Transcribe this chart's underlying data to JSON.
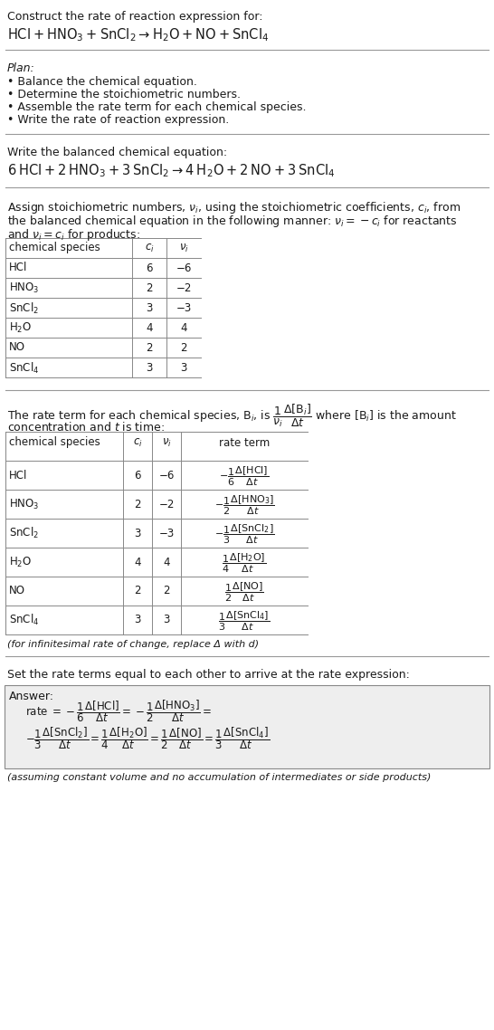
{
  "title_line1": "Construct the rate of reaction expression for:",
  "title_eq": "HCl + HNO$_3$ + SnCl$_2$ → H$_2$O + NO + SnCl$_4$",
  "plan_header": "Plan:",
  "plan_items": [
    "• Balance the chemical equation.",
    "• Determine the stoichiometric numbers.",
    "• Assemble the rate term for each chemical species.",
    "• Write the rate of reaction expression."
  ],
  "balanced_header": "Write the balanced chemical equation:",
  "balanced_eq": "6 HCl + 2 HNO$_3$ + 3 SnCl$_2$ → 4 H$_2$O + 2 NO + 3 SnCl$_4$",
  "stoich_line1": "Assign stoichiometric numbers, $\\nu_i$, using the stoichiometric coefficients, $c_i$, from",
  "stoich_line2": "the balanced chemical equation in the following manner: $\\nu_i = -c_i$ for reactants",
  "stoich_line3": "and $\\nu_i = c_i$ for products:",
  "table1_col0_header": "chemical species",
  "table1_col1_header": "$c_i$",
  "table1_col2_header": "$\\nu_i$",
  "table1_data": [
    [
      "HCl",
      "6",
      "−6"
    ],
    [
      "HNO$_3$",
      "2",
      "−2"
    ],
    [
      "SnCl$_2$",
      "3",
      "−3"
    ],
    [
      "H$_2$O",
      "4",
      "4"
    ],
    [
      "NO",
      "2",
      "2"
    ],
    [
      "SnCl$_4$",
      "3",
      "3"
    ]
  ],
  "rate_line1": "The rate term for each chemical species, B$_i$, is $\\dfrac{1}{\\nu_i}\\dfrac{\\Delta[\\mathrm{B}_i]}{\\Delta t}$ where [B$_i$] is the amount",
  "rate_line2": "concentration and $t$ is time:",
  "table2_col0_header": "chemical species",
  "table2_col1_header": "$c_i$",
  "table2_col2_header": "$\\nu_i$",
  "table2_col3_header": "rate term",
  "table2_data": [
    [
      "HCl",
      "6",
      "−6",
      "$-\\dfrac{1}{6}\\dfrac{\\Delta[\\mathrm{HCl}]}{\\Delta t}$"
    ],
    [
      "HNO$_3$",
      "2",
      "−2",
      "$-\\dfrac{1}{2}\\dfrac{\\Delta[\\mathrm{HNO_3}]}{\\Delta t}$"
    ],
    [
      "SnCl$_2$",
      "3",
      "−3",
      "$-\\dfrac{1}{3}\\dfrac{\\Delta[\\mathrm{SnCl_2}]}{\\Delta t}$"
    ],
    [
      "H$_2$O",
      "4",
      "4",
      "$\\dfrac{1}{4}\\dfrac{\\Delta[\\mathrm{H_2O}]}{\\Delta t}$"
    ],
    [
      "NO",
      "2",
      "2",
      "$\\dfrac{1}{2}\\dfrac{\\Delta[\\mathrm{NO}]}{\\Delta t}$"
    ],
    [
      "SnCl$_4$",
      "3",
      "3",
      "$\\dfrac{1}{3}\\dfrac{\\Delta[\\mathrm{SnCl_4}]}{\\Delta t}$"
    ]
  ],
  "infinitesimal_note": "(for infinitesimal rate of change, replace Δ with d)",
  "set_rate_header": "Set the rate terms equal to each other to arrive at the rate expression:",
  "answer_label": "Answer:",
  "ans_line1": "rate $= -\\dfrac{1}{6}\\dfrac{\\Delta[\\mathrm{HCl}]}{\\Delta t} = -\\dfrac{1}{2}\\dfrac{\\Delta[\\mathrm{HNO_3}]}{\\Delta t} =$",
  "ans_line2": "$-\\dfrac{1}{3}\\dfrac{\\Delta[\\mathrm{SnCl_2}]}{\\Delta t} = \\dfrac{1}{4}\\dfrac{\\Delta[\\mathrm{H_2O}]}{\\Delta t} = \\dfrac{1}{2}\\dfrac{\\Delta[\\mathrm{NO}]}{\\Delta t} = \\dfrac{1}{3}\\dfrac{\\Delta[\\mathrm{SnCl_4}]}{\\Delta t}$",
  "answer_note": "(assuming constant volume and no accumulation of intermediates or side products)",
  "bg_color": "#ffffff",
  "text_color": "#1a1a1a",
  "line_color": "#999999",
  "table_line_color": "#888888",
  "answer_bg": "#eeeeee",
  "fs": 9.0,
  "fs_eq": 10.5,
  "fs_small": 8.5,
  "fs_note": 8.0
}
